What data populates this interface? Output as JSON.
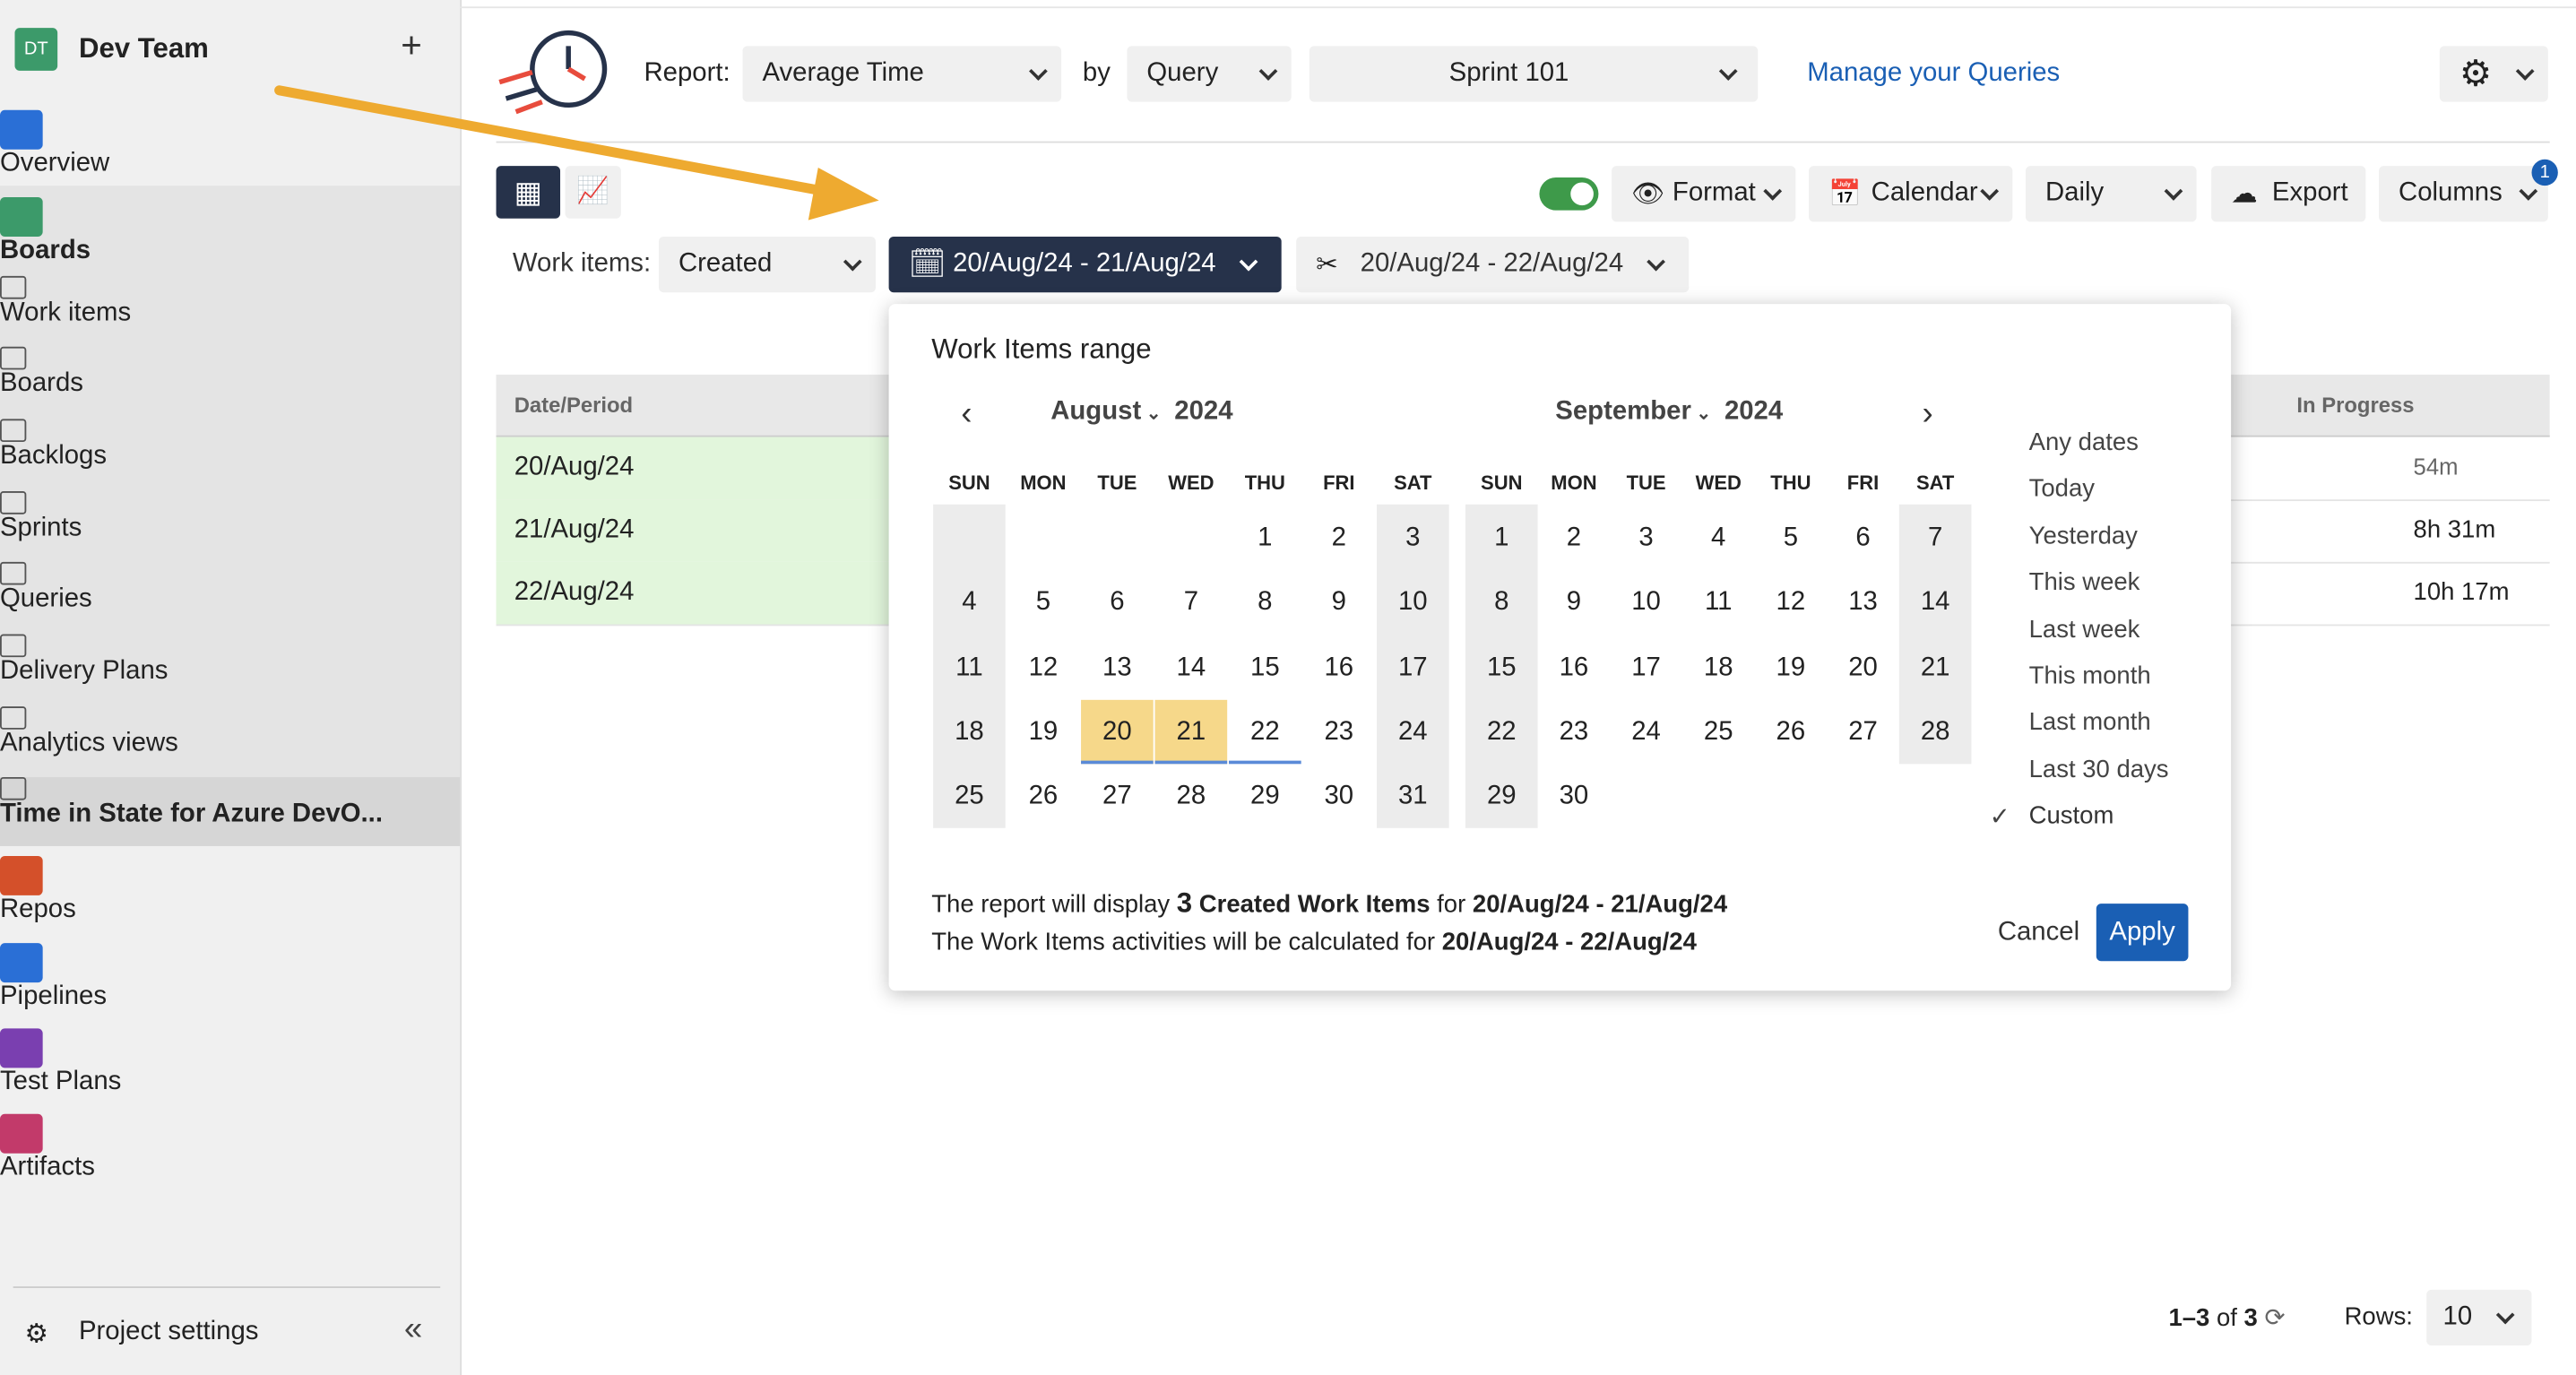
{
  "sidebar": {
    "team_initials": "DT",
    "team": "Dev Team",
    "items": [
      "Overview",
      "Boards",
      "Work items",
      "Boards",
      "Backlogs",
      "Sprints",
      "Queries",
      "Delivery Plans",
      "Analytics views",
      "Time in State for Azure DevO...",
      "Repos",
      "Pipelines",
      "Test Plans",
      "Artifacts"
    ],
    "settings": "Project settings"
  },
  "toolbar": {
    "report_label": "Report:",
    "report": "Average Time",
    "by": "by",
    "query": "Query",
    "sprint": "Sprint 101",
    "manage": "Manage your Queries",
    "format": "Format",
    "calendar": "Calendar",
    "period": "Daily",
    "export": "Export",
    "columns": "Columns",
    "columns_badge": 1,
    "work_items_label": "Work items:",
    "work_items": "Created",
    "range": "20/Aug/24 - 21/Aug/24",
    "activity_range": "20/Aug/24 - 22/Aug/24"
  },
  "table": {
    "headers": [
      "Date/Period",
      "In Progress"
    ],
    "rows": [
      [
        "20/Aug/24",
        "54m"
      ],
      [
        "21/Aug/24",
        "8h 31m"
      ],
      [
        "22/Aug/24",
        "10h 17m"
      ]
    ]
  },
  "popup": {
    "title": "Work Items range",
    "weekdays": [
      "SUN",
      "MON",
      "TUE",
      "WED",
      "THU",
      "FRI",
      "SAT"
    ],
    "months": [
      {
        "month": "August",
        "year": 2024,
        "weeks": [
          [
            null,
            null,
            null,
            null,
            1,
            2,
            3
          ],
          [
            4,
            5,
            6,
            7,
            8,
            9,
            10
          ],
          [
            11,
            12,
            13,
            14,
            15,
            16,
            17
          ],
          [
            18,
            19,
            20,
            21,
            22,
            23,
            24
          ],
          [
            25,
            26,
            27,
            28,
            29,
            30,
            31
          ]
        ]
      },
      {
        "month": "September",
        "year": 2024,
        "weeks": [
          [
            1,
            2,
            3,
            4,
            5,
            6,
            7
          ],
          [
            8,
            9,
            10,
            11,
            12,
            13,
            14
          ],
          [
            15,
            16,
            17,
            18,
            19,
            20,
            21
          ],
          [
            22,
            23,
            24,
            25,
            26,
            27,
            28
          ],
          [
            29,
            30,
            null,
            null,
            null,
            null,
            null
          ]
        ]
      }
    ],
    "presets": [
      "Any dates",
      "Today",
      "Yesterday",
      "This week",
      "Last week",
      "This month",
      "Last month",
      "Last 30 days",
      "Custom"
    ],
    "summary1": {
      "prefix": "The report will display",
      "count": 3,
      "items": "Created Work Items",
      "for": "for",
      "range": "20/Aug/24 - 21/Aug/24"
    },
    "summary2": {
      "prefix": "The Work Items activities will be calculated for",
      "range": "20/Aug/24 - 22/Aug/24"
    },
    "cancel": "Cancel",
    "apply": "Apply"
  },
  "footer": {
    "range": "1–3",
    "of": "of",
    "total": 3,
    "rows_label": "Rows:",
    "rows": 10
  }
}
